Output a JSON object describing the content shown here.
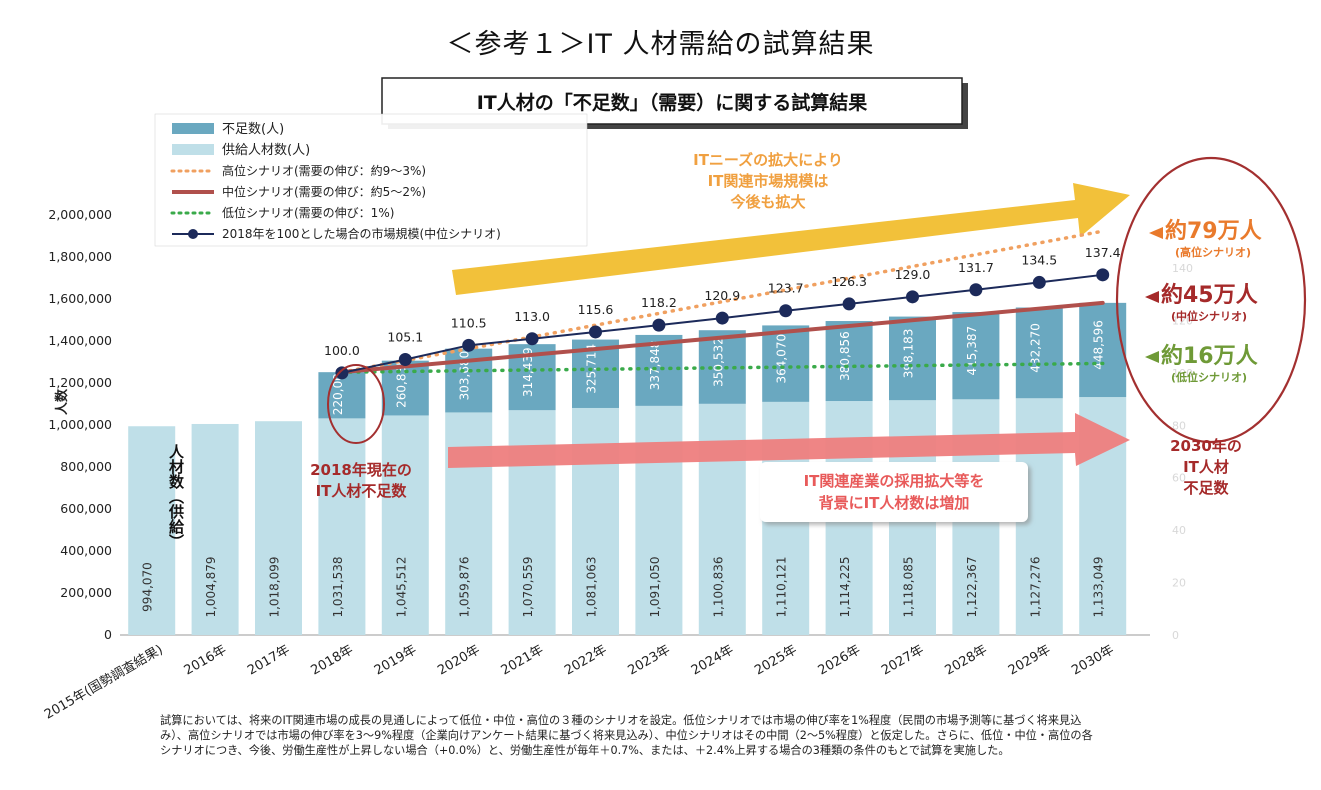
{
  "page_title": "＜参考１＞IT 人材需給の試算結果",
  "chart_title": "IT人材の「不足数」（需要）に関する試算結果",
  "colors": {
    "shortage": "#6aa8c0",
    "supply": "#bfdfe8",
    "high": "#f0a060",
    "mid": "#b0504c",
    "low": "#3aaa4a",
    "market": "#1c2a5a",
    "yellow_arrow": "#f2c13a",
    "pink_arrow": "#ee7e7e",
    "dark_red": "#a52a2a",
    "orange_text": "#e97a2c",
    "green_text": "#6f9a37",
    "ellipse": "#a33030"
  },
  "legend": [
    {
      "label": "不足数(人)",
      "icon": "box-dark"
    },
    {
      "label": "供給人材数(人)",
      "icon": "box-light"
    },
    {
      "label": "高位シナリオ(需要の伸び：約9～3%)",
      "icon": "dotted-orange"
    },
    {
      "label": "中位シナリオ(需要の伸び：約5～2%)",
      "icon": "solid-red"
    },
    {
      "label": "低位シナリオ(需要の伸び：1%)",
      "icon": "dotted-green"
    },
    {
      "label": "2018年を100とした場合の市場規模(中位シナリオ)",
      "icon": "line-marker"
    }
  ],
  "chart_data": {
    "type": "bar",
    "ylabel": "人数",
    "ylim": [
      0,
      2000000
    ],
    "y_ticks": [
      "0",
      "200,000",
      "400,000",
      "600,000",
      "800,000",
      "1,000,000",
      "1,200,000",
      "1,400,000",
      "1,600,000",
      "1,800,000",
      "2,000,000"
    ],
    "y2lim": [
      0,
      140
    ],
    "y2_ticks": [
      "0",
      "20",
      "40",
      "60",
      "80",
      "100",
      "120",
      "140"
    ],
    "categories": [
      "2015年(国勢調査結果)",
      "2016年",
      "2017年",
      "2018年",
      "2019年",
      "2020年",
      "2021年",
      "2022年",
      "2023年",
      "2024年",
      "2025年",
      "2026年",
      "2027年",
      "2028年",
      "2029年",
      "2030年"
    ],
    "series": [
      {
        "name": "供給人材数(人)",
        "values": [
          994070,
          1004879,
          1018099,
          1031538,
          1045512,
          1059876,
          1070559,
          1081063,
          1091050,
          1100836,
          1110121,
          1114225,
          1118085,
          1122367,
          1127276,
          1133049
        ],
        "labels": [
          "994,070",
          "1,004,879",
          "1,018,099",
          "1,031,538",
          "1,045,512",
          "1,059,876",
          "1,070,559",
          "1,081,063",
          "1,091,050",
          "1,100,836",
          "1,110,121",
          "1,114,225",
          "1,118,085",
          "1,122,367",
          "1,127,276",
          "1,133,049"
        ]
      },
      {
        "name": "不足数(人)",
        "values": [
          null,
          null,
          null,
          220000,
          260835,
          303680,
          314439,
          325714,
          337848,
          350532,
          364070,
          380856,
          398183,
          415387,
          432270,
          448596
        ],
        "labels": [
          "",
          "",
          "",
          "220,000",
          "260,835",
          "303,680",
          "314,439",
          "325,714",
          "337,848",
          "350,532",
          "364,070",
          "380,856",
          "398,183",
          "415,387",
          "432,270",
          "448,596"
        ]
      },
      {
        "name": "2018年を100とした場合の市場規模(中位シナリオ)",
        "axis": "secondary",
        "values": [
          null,
          null,
          null,
          100.0,
          105.1,
          110.5,
          113.0,
          115.6,
          118.2,
          120.9,
          123.7,
          126.3,
          129.0,
          131.7,
          134.5,
          137.4
        ],
        "labels": [
          "",
          "",
          "",
          "100.0",
          "105.1",
          "110.5",
          "113.0",
          "115.6",
          "118.2",
          "120.9",
          "123.7",
          "126.3",
          "129.0",
          "131.7",
          "134.5",
          "137.4"
        ]
      },
      {
        "name": "高位シナリオ",
        "from": [
          3,
          1251538
        ],
        "to": [
          15,
          1923000
        ]
      },
      {
        "name": "中位シナリオ",
        "from": [
          3,
          1251538
        ],
        "to": [
          15,
          1581645
        ]
      },
      {
        "name": "低位シナリオ",
        "from": [
          3,
          1251538
        ],
        "to": [
          15,
          1293000
        ]
      }
    ]
  },
  "annotations": {
    "supply_vertical": "人材数（供給）",
    "shortage_2018": [
      "2018年現在の",
      "IT人材不足数"
    ],
    "market_growth": [
      "ITニーズの拡大により",
      "IT関連市場規模は",
      "今後も拡大"
    ],
    "hire_growth": [
      "IT関連産業の採用拡大等を",
      "背景にIT人材数は増加"
    ],
    "high_value": "約79万人",
    "high_sub": "(高位シナリオ)",
    "mid_value": "約45万人",
    "mid_sub": "(中位シナリオ)",
    "low_value": "約16万人",
    "low_sub": "(低位シナリオ)",
    "shortage_2030": [
      "2030年の",
      "IT人材",
      "不足数"
    ]
  },
  "footnote": [
    "試算においては、将来のIT関連市場の成長の見通しによって低位・中位・高位の３種のシナリオを設定。低位シナリオでは市場の伸び率を1%程度（民間の市場予測等に基づく将来見込",
    "み）、高位シナリオでは市場の伸び率を3～9%程度（企業向けアンケート結果に基づく将来見込み）、中位シナリオはその中間（2～5%程度）と仮定した。さらに、低位・中位・高位の各",
    "シナリオにつき、今後、労働生産性が上昇しない場合（+0.0%）と、労働生産性が毎年＋0.7%、または、＋2.4%上昇する場合の3種類の条件のもとで試算を実施した。"
  ]
}
